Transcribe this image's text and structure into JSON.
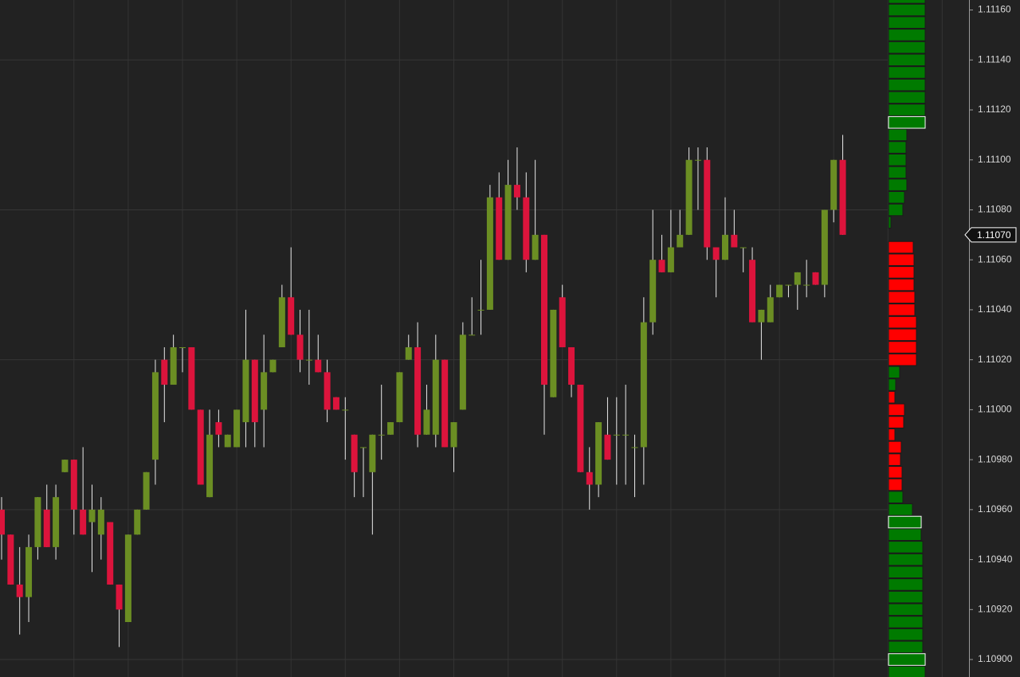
{
  "chart_data": {
    "type": "candlestick",
    "up_color": "#6b8e23",
    "down_color": "#dc143c",
    "wick_color": "#e8e8e8",
    "grid": true,
    "ylim": [
      1.10893,
      1.11164
    ],
    "yticks": [
      {
        "value": 1.1116,
        "label": "1.11160"
      },
      {
        "value": 1.1114,
        "label": "1.11140"
      },
      {
        "value": 1.1112,
        "label": "1.11120"
      },
      {
        "value": 1.111,
        "label": "1.11100"
      },
      {
        "value": 1.1108,
        "label": "1.11080"
      },
      {
        "value": 1.1106,
        "label": "1.11060"
      },
      {
        "value": 1.1104,
        "label": "1.11040"
      },
      {
        "value": 1.1102,
        "label": "1.11020"
      },
      {
        "value": 1.11,
        "label": "1.11000"
      },
      {
        "value": 1.1098,
        "label": "1.10980"
      },
      {
        "value": 1.1096,
        "label": "1.10960"
      },
      {
        "value": 1.1094,
        "label": "1.10940"
      },
      {
        "value": 1.1092,
        "label": "1.10920"
      },
      {
        "value": 1.109,
        "label": "1.10900"
      }
    ],
    "last_price": {
      "value": 1.1107,
      "label": "1.11070"
    },
    "open": [
      1.1096,
      1.1095,
      1.1093,
      1.10925,
      1.10945,
      1.1096,
      1.10945,
      1.10975,
      1.1098,
      1.1096,
      1.10955,
      1.1095,
      1.10955,
      1.1093,
      1.10915,
      1.1095,
      1.1096,
      1.1098,
      1.1102,
      1.1101,
      1.11025,
      1.11025,
      1.11,
      1.10965,
      1.10995,
      1.10985,
      1.10985,
      1.10995,
      1.1102,
      1.11,
      1.11015,
      1.11025,
      1.11045,
      1.1103,
      1.1102,
      1.1102,
      1.11015,
      1.11005,
      1.11,
      1.1099,
      1.10985,
      1.10975,
      1.1099,
      1.1099,
      1.10995,
      1.1102,
      1.11025,
      1.1099,
      1.1099,
      1.1102,
      1.10985,
      1.11,
      1.1103,
      1.1104,
      1.1104,
      1.11085,
      1.1106,
      1.1109,
      1.11085,
      1.1106,
      1.1107,
      1.11005,
      1.11045,
      1.11025,
      1.1101,
      1.10975,
      1.1097,
      1.1099,
      1.1099,
      1.1099,
      1.10985,
      1.10985,
      1.11035,
      1.1106,
      1.11055,
      1.11065,
      1.1107,
      1.111,
      1.111,
      1.11065,
      1.1106,
      1.1107,
      1.11065,
      1.1106,
      1.11035,
      1.11035,
      1.11045,
      1.1105,
      1.1105,
      1.1105,
      1.11055,
      1.1105,
      1.1108,
      1.111
    ],
    "high": [
      1.10965,
      1.1095,
      1.10945,
      1.1095,
      1.10965,
      1.1097,
      1.1097,
      1.1098,
      1.1098,
      1.10985,
      1.1097,
      1.10965,
      1.10955,
      1.1093,
      1.1095,
      1.1096,
      1.10975,
      1.1102,
      1.11025,
      1.1103,
      1.11025,
      1.11025,
      1.11,
      1.11,
      1.11,
      1.1099,
      1.11,
      1.1104,
      1.1102,
      1.1103,
      1.1102,
      1.1105,
      1.11065,
      1.1104,
      1.1104,
      1.1103,
      1.1102,
      1.11005,
      1.11005,
      1.1099,
      1.10985,
      1.1099,
      1.1101,
      1.10995,
      1.11015,
      1.1103,
      1.11035,
      1.1101,
      1.1103,
      1.1102,
      1.10995,
      1.11035,
      1.11045,
      1.1106,
      1.1109,
      1.11095,
      1.111,
      1.11105,
      1.11095,
      1.111,
      1.1107,
      1.1104,
      1.1105,
      1.11025,
      1.1101,
      1.10985,
      1.10995,
      1.11005,
      1.11005,
      1.1101,
      1.1099,
      1.11045,
      1.1108,
      1.1107,
      1.1108,
      1.1108,
      1.11105,
      1.11105,
      1.11105,
      1.11065,
      1.11085,
      1.1108,
      1.11065,
      1.11065,
      1.1104,
      1.1105,
      1.1105,
      1.1105,
      1.11055,
      1.1106,
      1.11055,
      1.1108,
      1.111,
      1.1111
    ],
    "low": [
      1.1094,
      1.1093,
      1.1091,
      1.10915,
      1.1094,
      1.10945,
      1.1094,
      1.10975,
      1.1095,
      1.1095,
      1.10935,
      1.1094,
      1.1093,
      1.10905,
      1.10915,
      1.1095,
      1.1096,
      1.1097,
      1.10995,
      1.1101,
      1.11015,
      1.11,
      1.1097,
      1.10965,
      1.10985,
      1.10985,
      1.10985,
      1.10985,
      1.10985,
      1.10985,
      1.11015,
      1.11025,
      1.1103,
      1.11015,
      1.1101,
      1.11015,
      1.10995,
      1.11,
      1.1098,
      1.10965,
      1.10965,
      1.1095,
      1.1098,
      1.1099,
      1.10995,
      1.1102,
      1.10985,
      1.1099,
      1.10985,
      1.10985,
      1.10975,
      1.11,
      1.1103,
      1.1103,
      1.1104,
      1.1106,
      1.1106,
      1.1108,
      1.11055,
      1.1106,
      1.1099,
      1.11005,
      1.11025,
      1.11005,
      1.10975,
      1.1096,
      1.10965,
      1.1098,
      1.1097,
      1.1097,
      1.10965,
      1.1097,
      1.1103,
      1.11055,
      1.11055,
      1.11065,
      1.1107,
      1.1108,
      1.1106,
      1.11045,
      1.1106,
      1.11065,
      1.11055,
      1.11035,
      1.1102,
      1.11035,
      1.11045,
      1.11045,
      1.1104,
      1.11045,
      1.1105,
      1.11045,
      1.11075,
      1.1107
    ],
    "close": [
      1.1095,
      1.1093,
      1.10925,
      1.10945,
      1.10965,
      1.10945,
      1.10965,
      1.1098,
      1.1096,
      1.1095,
      1.1096,
      1.1096,
      1.1093,
      1.1092,
      1.1095,
      1.1096,
      1.10975,
      1.11015,
      1.1101,
      1.11025,
      1.11025,
      1.11,
      1.1097,
      1.1099,
      1.1099,
      1.1099,
      1.11,
      1.1102,
      1.10995,
      1.11015,
      1.1102,
      1.11045,
      1.1103,
      1.1102,
      1.1102,
      1.11015,
      1.11,
      1.11,
      1.11,
      1.10975,
      1.10985,
      1.1099,
      1.1099,
      1.10995,
      1.11015,
      1.11025,
      1.1099,
      1.11,
      1.1102,
      1.10985,
      1.10995,
      1.1103,
      1.1103,
      1.1104,
      1.11085,
      1.1106,
      1.1109,
      1.11085,
      1.1106,
      1.1107,
      1.1101,
      1.1104,
      1.11025,
      1.1101,
      1.10975,
      1.1097,
      1.10995,
      1.1098,
      1.1099,
      1.1099,
      1.10985,
      1.11035,
      1.1106,
      1.11055,
      1.11065,
      1.1107,
      1.111,
      1.111,
      1.11065,
      1.1106,
      1.1107,
      1.11065,
      1.11065,
      1.11035,
      1.1104,
      1.11045,
      1.1105,
      1.1105,
      1.11055,
      1.1105,
      1.1105,
      1.1108,
      1.111,
      1.1107
    ],
    "volume_profile": {
      "xlim": [
        0,
        100
      ],
      "prices": [
        1.11165,
        1.1116,
        1.11155,
        1.1115,
        1.11145,
        1.1114,
        1.11135,
        1.1113,
        1.11125,
        1.1112,
        1.11115,
        1.1111,
        1.11105,
        1.111,
        1.11095,
        1.1109,
        1.11085,
        1.1108,
        1.11075,
        1.11065,
        1.1106,
        1.11055,
        1.1105,
        1.11045,
        1.1104,
        1.11035,
        1.1103,
        1.11025,
        1.1102,
        1.11015,
        1.1101,
        1.11005,
        1.11,
        1.10995,
        1.1099,
        1.10985,
        1.1098,
        1.10975,
        1.1097,
        1.10965,
        1.1096,
        1.10955,
        1.1095,
        1.10945,
        1.1094,
        1.10935,
        1.1093,
        1.10925,
        1.1092,
        1.10915,
        1.1091,
        1.10905,
        1.109,
        1.10895
      ],
      "volumes": [
        46,
        46,
        46,
        46,
        46,
        46,
        46,
        46,
        46,
        46,
        46,
        23,
        22,
        22,
        22,
        23,
        20,
        18,
        3,
        31,
        32,
        32,
        32,
        33,
        33,
        35,
        35,
        35,
        35,
        14,
        9,
        8,
        20,
        19,
        8,
        16,
        15,
        17,
        17,
        18,
        30,
        41,
        41,
        43,
        43,
        43,
        43,
        43,
        43,
        43,
        43,
        43,
        46,
        46
      ],
      "colors": [
        "#007a00",
        "#007a00",
        "#007a00",
        "#007a00",
        "#007a00",
        "#007a00",
        "#007a00",
        "#007a00",
        "#007a00",
        "#007a00",
        "#007a00",
        "#007a00",
        "#007a00",
        "#007a00",
        "#007a00",
        "#007a00",
        "#007a00",
        "#007a00",
        "#007a00",
        "#ff0000",
        "#ff0000",
        "#ff0000",
        "#ff0000",
        "#ff0000",
        "#ff0000",
        "#ff0000",
        "#ff0000",
        "#ff0000",
        "#ff0000",
        "#007a00",
        "#007a00",
        "#ff0000",
        "#ff0000",
        "#ff0000",
        "#ff0000",
        "#ff0000",
        "#ff0000",
        "#ff0000",
        "#ff0000",
        "#007a00",
        "#007a00",
        "#007a00",
        "#007a00",
        "#007a00",
        "#007a00",
        "#007a00",
        "#007a00",
        "#007a00",
        "#007a00",
        "#007a00",
        "#007a00",
        "#007a00",
        "#007a00",
        "#007a00"
      ],
      "highlighted": [
        1.11115,
        1.10955,
        1.109
      ]
    }
  }
}
